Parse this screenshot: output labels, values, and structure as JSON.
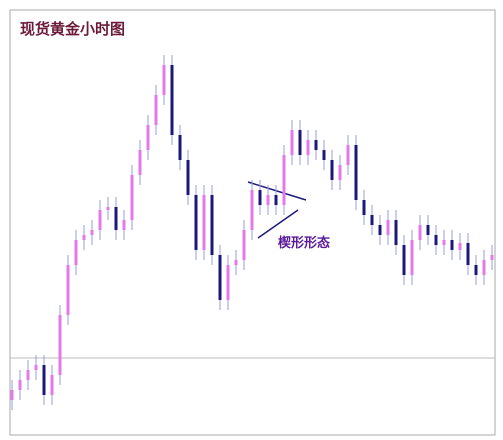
{
  "chart_data": {
    "type": "candlestick",
    "title": "现货黄金小时图",
    "annotation": "楔形形态",
    "up_color": "#e27be8",
    "down_color": "#1c1a78",
    "ylim": [
      0,
      425
    ],
    "open": [
      35,
      45,
      55,
      65,
      70,
      40,
      60,
      120,
      170,
      195,
      200,
      205,
      225,
      228,
      205,
      215,
      260,
      285,
      310,
      340,
      370,
      300,
      275,
      240,
      185,
      240,
      180,
      135,
      170,
      175,
      205,
      245,
      230,
      240,
      230,
      280,
      305,
      280,
      295,
      285,
      275,
      255,
      270,
      290,
      235,
      220,
      210,
      200,
      215,
      190,
      160,
      195,
      210,
      200,
      190,
      195,
      185,
      192,
      170,
      160,
      175
    ],
    "high": [
      55,
      65,
      75,
      80,
      80,
      70,
      130,
      180,
      205,
      210,
      215,
      235,
      238,
      238,
      225,
      270,
      295,
      320,
      350,
      380,
      380,
      310,
      285,
      250,
      250,
      250,
      190,
      180,
      185,
      215,
      255,
      255,
      250,
      250,
      290,
      315,
      315,
      305,
      305,
      295,
      285,
      280,
      300,
      300,
      245,
      230,
      220,
      225,
      225,
      200,
      205,
      220,
      220,
      210,
      205,
      205,
      202,
      202,
      180,
      185,
      190
    ],
    "low": [
      25,
      35,
      45,
      55,
      30,
      30,
      50,
      110,
      160,
      185,
      190,
      195,
      215,
      195,
      195,
      205,
      250,
      275,
      300,
      330,
      290,
      265,
      230,
      175,
      175,
      170,
      125,
      125,
      160,
      165,
      195,
      220,
      220,
      220,
      220,
      270,
      270,
      270,
      275,
      265,
      245,
      245,
      260,
      225,
      210,
      200,
      190,
      190,
      180,
      150,
      150,
      185,
      190,
      180,
      180,
      175,
      175,
      160,
      150,
      150,
      165
    ],
    "close": [
      45,
      55,
      65,
      70,
      40,
      60,
      120,
      170,
      195,
      200,
      205,
      225,
      228,
      205,
      215,
      260,
      285,
      310,
      340,
      370,
      300,
      275,
      240,
      185,
      240,
      180,
      135,
      170,
      175,
      205,
      245,
      230,
      240,
      230,
      280,
      305,
      280,
      295,
      285,
      275,
      255,
      270,
      290,
      235,
      220,
      210,
      200,
      215,
      190,
      160,
      195,
      210,
      200,
      190,
      195,
      185,
      192,
      170,
      160,
      175,
      180
    ]
  }
}
